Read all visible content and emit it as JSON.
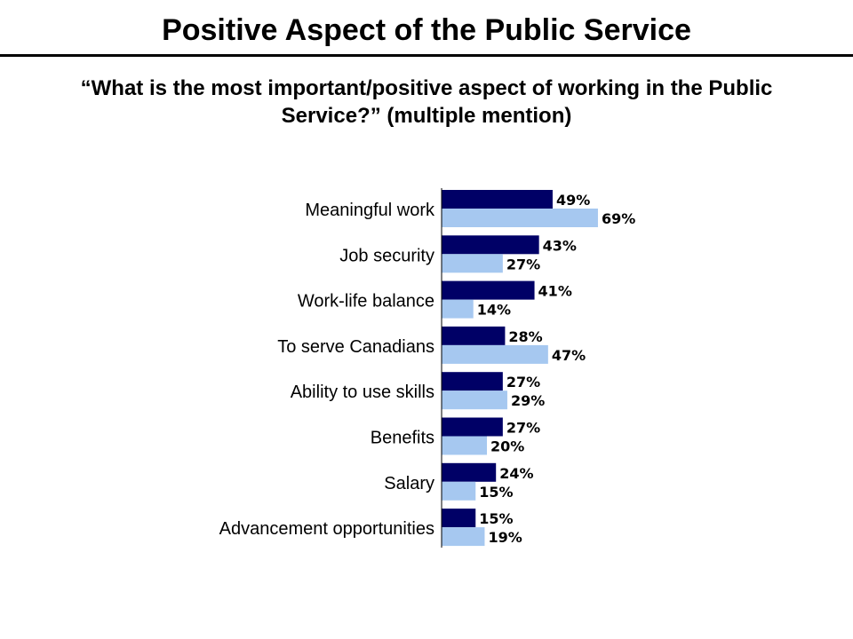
{
  "title": "Positive Aspect of the Public Service",
  "subtitle": "“What is the most important/positive aspect of working in the Public Service?” (multiple mention)",
  "colors": {
    "series_1": "#000066",
    "series_2": "#a6c8f0",
    "axis": "#000000"
  },
  "chart_data": {
    "type": "bar",
    "orientation": "horizontal",
    "categories": [
      "Meaningful work",
      "Job security",
      "Work-life balance",
      "To serve Canadians",
      "Ability to use skills",
      "Benefits",
      "Salary",
      "Advancement opportunities"
    ],
    "series": [
      {
        "values": [
          49,
          43,
          41,
          28,
          27,
          27,
          24,
          15
        ],
        "labels": [
          "49%",
          "43%",
          "41%",
          "28%",
          "27%",
          "27%",
          "24%",
          "15%"
        ],
        "color": "#000066"
      },
      {
        "values": [
          69,
          27,
          14,
          47,
          29,
          20,
          15,
          19
        ],
        "labels": [
          "69%",
          "27%",
          "14%",
          "47%",
          "29%",
          "20%",
          "15%",
          "19%"
        ],
        "color": "#a6c8f0"
      }
    ],
    "value_unit": "%",
    "xlim": [
      0,
      100
    ],
    "grid": false,
    "legend": "none",
    "xlabel": "",
    "ylabel": ""
  }
}
